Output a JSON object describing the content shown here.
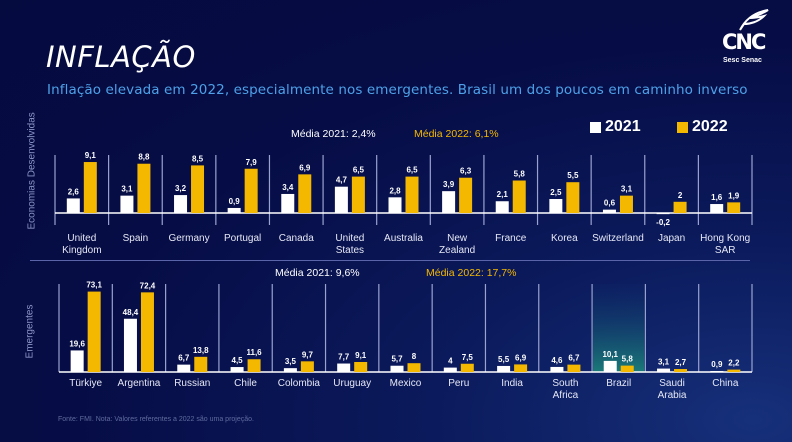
{
  "header": {
    "title": "INFLAÇÃO",
    "subtitle": "Inflação elevada em 2022, especialmente nos emergentes. Brasil um dos poucos em caminho inverso"
  },
  "logo": {
    "name": "CNC",
    "sub": "Sesc  Senac"
  },
  "legend": [
    {
      "label": "2021",
      "color": "#ffffff"
    },
    {
      "label": "2022",
      "color": "#f5b800"
    }
  ],
  "footer": {
    "source": "Fonte: FMI. Nota: Valores referentes a 2022 são uma projeção."
  },
  "chart_data": [
    {
      "type": "bar",
      "panel": "top",
      "group_label": "Economias Desenvolvidas",
      "avg_2021": "Média 2021: 2,4%",
      "avg_2022": "Média 2022: 6,1%",
      "categories": [
        "United Kingdom",
        "Spain",
        "Germany",
        "Portugal",
        "Canada",
        "United States",
        "Australia",
        "New Zealand",
        "France",
        "Korea",
        "Switzerland",
        "Japan",
        "Hong Kong SAR"
      ],
      "category_lines": [
        [
          "United",
          "Kingdom"
        ],
        [
          "Spain"
        ],
        [
          "Germany"
        ],
        [
          "Portugal"
        ],
        [
          "Canada"
        ],
        [
          "United",
          "States"
        ],
        [
          "Australia"
        ],
        [
          "New",
          "Zealand"
        ],
        [
          "France"
        ],
        [
          "Korea"
        ],
        [
          "Switzerland"
        ],
        [
          "Japan"
        ],
        [
          "Hong Kong",
          "SAR"
        ]
      ],
      "series": [
        {
          "name": "2021",
          "color": "#ffffff",
          "values": [
            2.6,
            3.1,
            3.2,
            0.9,
            3.4,
            4.7,
            2.8,
            3.9,
            2.1,
            2.5,
            0.6,
            -0.2,
            1.6
          ],
          "labels": [
            "2,6",
            "3,1",
            "3,2",
            "0,9",
            "3,4",
            "4,7",
            "2,8",
            "3,9",
            "2,1",
            "2,5",
            "0,6",
            "-0,2",
            "1,6"
          ]
        },
        {
          "name": "2022",
          "color": "#f5b800",
          "values": [
            9.1,
            8.8,
            8.5,
            7.9,
            6.9,
            6.5,
            6.5,
            6.3,
            5.8,
            5.5,
            3.1,
            2.0,
            1.9
          ],
          "labels": [
            "9,1",
            "8,8",
            "8,5",
            "7,9",
            "6,9",
            "6,5",
            "6,5",
            "6,3",
            "5,8",
            "5,5",
            "3,1",
            "2",
            "1,9"
          ]
        }
      ],
      "ylim": [
        -1,
        10
      ],
      "grid": false,
      "legend_position": "top-right"
    },
    {
      "type": "bar",
      "panel": "bottom",
      "group_label": "Emergentes",
      "avg_2021": "Média 2021: 9,6%",
      "avg_2022": "Média 2022: 17,7%",
      "highlight": "Brazil",
      "categories": [
        "Türkiye",
        "Argentina",
        "Russian",
        "Chile",
        "Colombia",
        "Uruguay",
        "Mexico",
        "Peru",
        "India",
        "South Africa",
        "Brazil",
        "Saudi Arabia",
        "China"
      ],
      "category_lines": [
        [
          "Türkiye"
        ],
        [
          "Argentina"
        ],
        [
          "Russian"
        ],
        [
          "Chile"
        ],
        [
          "Colombia"
        ],
        [
          "Uruguay"
        ],
        [
          "Mexico"
        ],
        [
          "Peru"
        ],
        [
          "India"
        ],
        [
          "South",
          "Africa"
        ],
        [
          "Brazil"
        ],
        [
          "Saudi",
          "Arabia"
        ],
        [
          "China"
        ]
      ],
      "series": [
        {
          "name": "2021",
          "color": "#ffffff",
          "values": [
            19.6,
            48.4,
            6.7,
            4.5,
            3.5,
            7.7,
            5.7,
            4.0,
            5.5,
            4.6,
            10.1,
            3.1,
            0.9
          ],
          "labels": [
            "19,6",
            "48,4",
            "6,7",
            "4,5",
            "3,5",
            "7,7",
            "5,7",
            "4",
            "5,5",
            "4,6",
            "10,1",
            "3,1",
            "0,9"
          ]
        },
        {
          "name": "2022",
          "color": "#f5b800",
          "values": [
            73.1,
            72.4,
            13.8,
            11.6,
            9.7,
            9.1,
            8.0,
            7.5,
            6.9,
            6.7,
            5.8,
            2.7,
            2.2
          ],
          "labels": [
            "73,1",
            "72,4",
            "13,8",
            "11,6",
            "9,7",
            "9,1",
            "8",
            "7,5",
            "6,9",
            "6,7",
            "5,8",
            "2,7",
            "2,2"
          ]
        }
      ],
      "ylim": [
        0,
        80
      ],
      "grid": false
    }
  ]
}
